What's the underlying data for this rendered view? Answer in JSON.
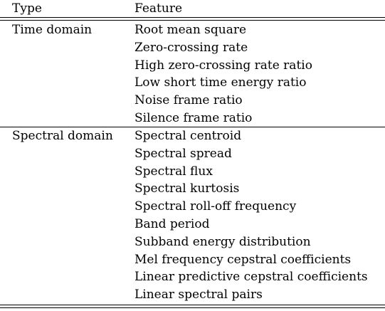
{
  "table": {
    "headers": {
      "type": "Type",
      "feature": "Feature"
    },
    "groups": [
      {
        "type": "Time domain",
        "features": [
          "Root mean square",
          "Zero-crossing rate",
          "High zero-crossing rate ratio",
          "Low short time energy ratio",
          "Noise frame ratio",
          "Silence frame ratio"
        ]
      },
      {
        "type": "Spectral domain",
        "features": [
          "Spectral centroid",
          "Spectral spread",
          "Spectral flux",
          "Spectral kurtosis",
          "Spectral roll-off frequency",
          "Band period",
          "Subband energy distribution",
          "Mel frequency cepstral coefficients",
          "Linear predictive cepstral coefficients",
          "Linear spectral pairs"
        ]
      }
    ]
  }
}
